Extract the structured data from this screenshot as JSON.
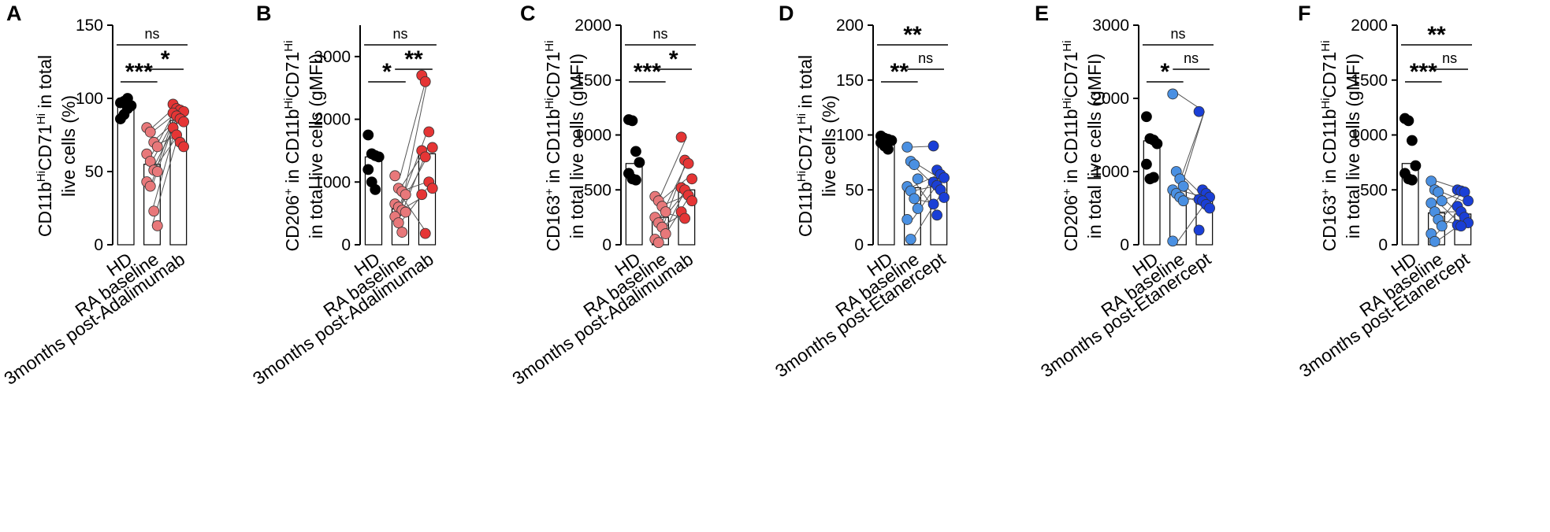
{
  "colors": {
    "hd": "#000000",
    "ra_adalimumab": "#e8787a",
    "post_adalimumab": "#e53535",
    "ra_etanercept": "#4a90e2",
    "post_etanercept": "#1a3fd6",
    "axis": "#000000"
  },
  "chart_data": [
    {
      "type": "bar",
      "panel": "A",
      "ylabel_line1": "CD11b<sup>Hi</sup>CD71<sup>Hi</sup> in total",
      "ylabel_line2": "live cells (%)",
      "categories": [
        "HD",
        "RA baseline",
        "3months post-Adalimumab"
      ],
      "ylim": [
        0,
        150
      ],
      "yticks": [
        0,
        50,
        100,
        150
      ],
      "bar_means": [
        94,
        55,
        85
      ],
      "points": {
        "HD": [
          97,
          98,
          93,
          95,
          86,
          89,
          100
        ],
        "RA baseline": [
          80,
          77,
          70,
          67,
          62,
          57,
          51,
          50,
          43,
          40,
          23,
          13
        ],
        "3months post-Adalimumab": [
          96,
          93,
          92,
          91,
          90,
          88,
          86,
          84,
          80,
          75,
          70,
          67
        ]
      },
      "paired": true,
      "comparisons": [
        {
          "from": 0,
          "to": 2,
          "label": "ns",
          "level": 2
        },
        {
          "from": 0,
          "to": 1,
          "label": "***",
          "level": 1
        },
        {
          "from": 1,
          "to": 2,
          "label": "*",
          "level": 0
        }
      ]
    },
    {
      "type": "bar",
      "panel": "B",
      "ylabel_line1": "CD206<sup>+</sup> in CD11b<sup>Hi</sup>CD71<sup>Hi</sup>",
      "ylabel_line2": "in total live cells (gMFI)",
      "categories": [
        "HD",
        "RA baseline",
        "3months post-Adalimumab"
      ],
      "ylim": [
        0,
        3500
      ],
      "yticks": [
        0,
        1000,
        2000,
        3000
      ],
      "bar_means": [
        1400,
        570,
        1450
      ],
      "points": {
        "HD": [
          1750,
          1450,
          1420,
          1400,
          1200,
          1000,
          880
        ],
        "RA baseline": [
          1100,
          900,
          850,
          800,
          650,
          600,
          550,
          520,
          450,
          350,
          200
        ],
        "3months post-Adalimumab": [
          2700,
          2600,
          1800,
          1550,
          1500,
          1400,
          1000,
          900,
          800,
          180
        ]
      },
      "paired": true,
      "comparisons": [
        {
          "from": 0,
          "to": 2,
          "label": "ns",
          "level": 2
        },
        {
          "from": 0,
          "to": 1,
          "label": "*",
          "level": 0
        },
        {
          "from": 1,
          "to": 2,
          "label": "**",
          "level": 1
        }
      ]
    },
    {
      "type": "bar",
      "panel": "C",
      "ylabel_line1": "CD163<sup>+</sup> in CD11b<sup>Hi</sup>CD71<sup>Hi</sup>",
      "ylabel_line2": "in total live cells (gMFI)",
      "categories": [
        "HD",
        "RA baseline",
        "3months post-Adalimumab"
      ],
      "ylim": [
        0,
        2000
      ],
      "yticks": [
        0,
        500,
        1000,
        1500,
        2000
      ],
      "bar_means": [
        740,
        250,
        500
      ],
      "points": {
        "HD": [
          1140,
          1130,
          850,
          750,
          650,
          600,
          590
        ],
        "RA baseline": [
          440,
          400,
          350,
          300,
          250,
          200,
          160,
          100,
          50,
          20
        ],
        "3months post-Adalimumab": [
          980,
          770,
          740,
          600,
          520,
          500,
          450,
          400,
          300,
          240
        ]
      },
      "paired": true,
      "comparisons": [
        {
          "from": 0,
          "to": 2,
          "label": "ns",
          "level": 2
        },
        {
          "from": 0,
          "to": 1,
          "label": "***",
          "level": 0
        },
        {
          "from": 1,
          "to": 2,
          "label": "*",
          "level": 1
        }
      ]
    },
    {
      "type": "bar",
      "panel": "D",
      "ylabel_line1": "CD11b<sup>Hi</sup>CD71<sup>Hi</sup> in total",
      "ylabel_line2": "live cells (%)",
      "categories": [
        "HD",
        "RA baseline",
        "3months post-Etanercept"
      ],
      "ylim": [
        0,
        200
      ],
      "yticks": [
        0,
        50,
        100,
        150,
        200
      ],
      "bar_means": [
        94,
        52,
        61
      ],
      "points": {
        "HD": [
          99,
          97,
          96,
          95,
          93,
          90,
          87
        ],
        "RA baseline": [
          89,
          76,
          73,
          60,
          53,
          49,
          42,
          33,
          23,
          5
        ],
        "3months post-Etanercept": [
          90,
          68,
          64,
          61,
          57,
          54,
          50,
          43,
          37,
          27
        ]
      },
      "paired": true,
      "comparisons": [
        {
          "from": 0,
          "to": 2,
          "label": "**",
          "level": 2
        },
        {
          "from": 0,
          "to": 1,
          "label": "**",
          "level": 0
        },
        {
          "from": 1,
          "to": 2,
          "label": "ns",
          "level": 1
        }
      ]
    },
    {
      "type": "bar",
      "panel": "E",
      "ylabel_line1": "CD206<sup>+</sup> in CD11b<sup>Hi</sup>CD71<sup>Hi</sup>",
      "ylabel_line2": "in total live cells (gMFI)",
      "categories": [
        "HD",
        "RA baseline",
        "3months post-Etanercept"
      ],
      "ylim": [
        0,
        3000
      ],
      "yticks": [
        0,
        1000,
        2000,
        3000
      ],
      "bar_means": [
        1420,
        750,
        650
      ],
      "points": {
        "HD": [
          1750,
          1450,
          1430,
          1380,
          1100,
          900,
          920
        ],
        "RA baseline": [
          2060,
          1000,
          900,
          800,
          750,
          700,
          650,
          600,
          50
        ],
        "3months post-Etanercept": [
          1820,
          750,
          700,
          650,
          620,
          600,
          550,
          500,
          200
        ]
      },
      "paired": true,
      "comparisons": [
        {
          "from": 0,
          "to": 2,
          "label": "ns",
          "level": 2
        },
        {
          "from": 0,
          "to": 1,
          "label": "*",
          "level": 0
        },
        {
          "from": 1,
          "to": 2,
          "label": "ns",
          "level": 1
        }
      ]
    },
    {
      "type": "bar",
      "panel": "F",
      "ylabel_line1": "CD163<sup>+</sup> in CD11b<sup>Hi</sup>CD71<sup>Hi</sup>",
      "ylabel_line2": "in total live cells (gMFI)",
      "categories": [
        "HD",
        "RA baseline",
        "3months post-Etanercept"
      ],
      "ylim": [
        0,
        2000
      ],
      "yticks": [
        0,
        500,
        1000,
        1500,
        2000
      ],
      "bar_means": [
        740,
        290,
        280
      ],
      "points": {
        "HD": [
          1150,
          1130,
          950,
          720,
          650,
          600,
          590
        ],
        "RA baseline": [
          580,
          500,
          480,
          400,
          380,
          300,
          230,
          170,
          100,
          30
        ],
        "3months post-Etanercept": [
          500,
          490,
          480,
          400,
          350,
          300,
          250,
          200,
          180,
          170
        ]
      },
      "paired": true,
      "comparisons": [
        {
          "from": 0,
          "to": 2,
          "label": "**",
          "level": 2
        },
        {
          "from": 0,
          "to": 1,
          "label": "***",
          "level": 0
        },
        {
          "from": 1,
          "to": 2,
          "label": "ns",
          "level": 1
        }
      ]
    }
  ]
}
